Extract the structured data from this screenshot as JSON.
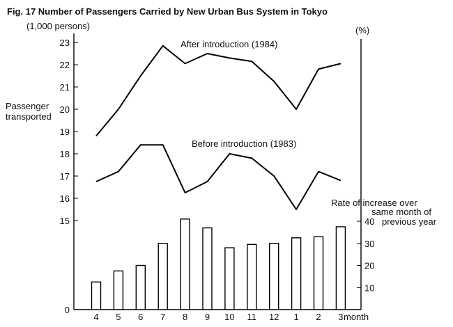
{
  "chart_data": {
    "type": "line+bar",
    "title": "Fig. 17  Number of Passengers Carried by New Urban Bus System in Tokyo",
    "left_unit": "(1,000 persons)",
    "left_axis_label": [
      "Passenger",
      "transported"
    ],
    "right_unit": "(%)",
    "right_axis_label": [
      "Rate of increase over",
      "same month of",
      "previous year"
    ],
    "xlabel_suffix": "month",
    "categories": [
      "4",
      "5",
      "6",
      "7",
      "8",
      "9",
      "10",
      "11",
      "12",
      "1",
      "2",
      "3"
    ],
    "left_ticks": [
      "0",
      "15",
      "16",
      "17",
      "18",
      "19",
      "20",
      "21",
      "22",
      "23"
    ],
    "right_ticks": [
      "10",
      "20",
      "30",
      "40"
    ],
    "ylim_left_lines": [
      15,
      23
    ],
    "ylim_right_bars": [
      0,
      40
    ],
    "series": [
      {
        "name": "After introduction (1984)",
        "kind": "line",
        "values": [
          18.8,
          20.0,
          21.5,
          22.85,
          22.05,
          22.5,
          22.3,
          22.15,
          21.25,
          20.0,
          21.8,
          22.05
        ]
      },
      {
        "name": "Before introduction (1983)",
        "kind": "line",
        "values": [
          16.75,
          17.2,
          18.4,
          18.4,
          16.25,
          16.75,
          18.0,
          17.8,
          17.0,
          15.5,
          17.2,
          16.8
        ]
      },
      {
        "name": "Rate of increase over same month of previous year",
        "kind": "bar",
        "values": [
          12.5,
          17.5,
          20,
          30,
          41,
          37,
          28,
          29.5,
          30,
          32.5,
          33,
          37.5
        ]
      }
    ]
  }
}
